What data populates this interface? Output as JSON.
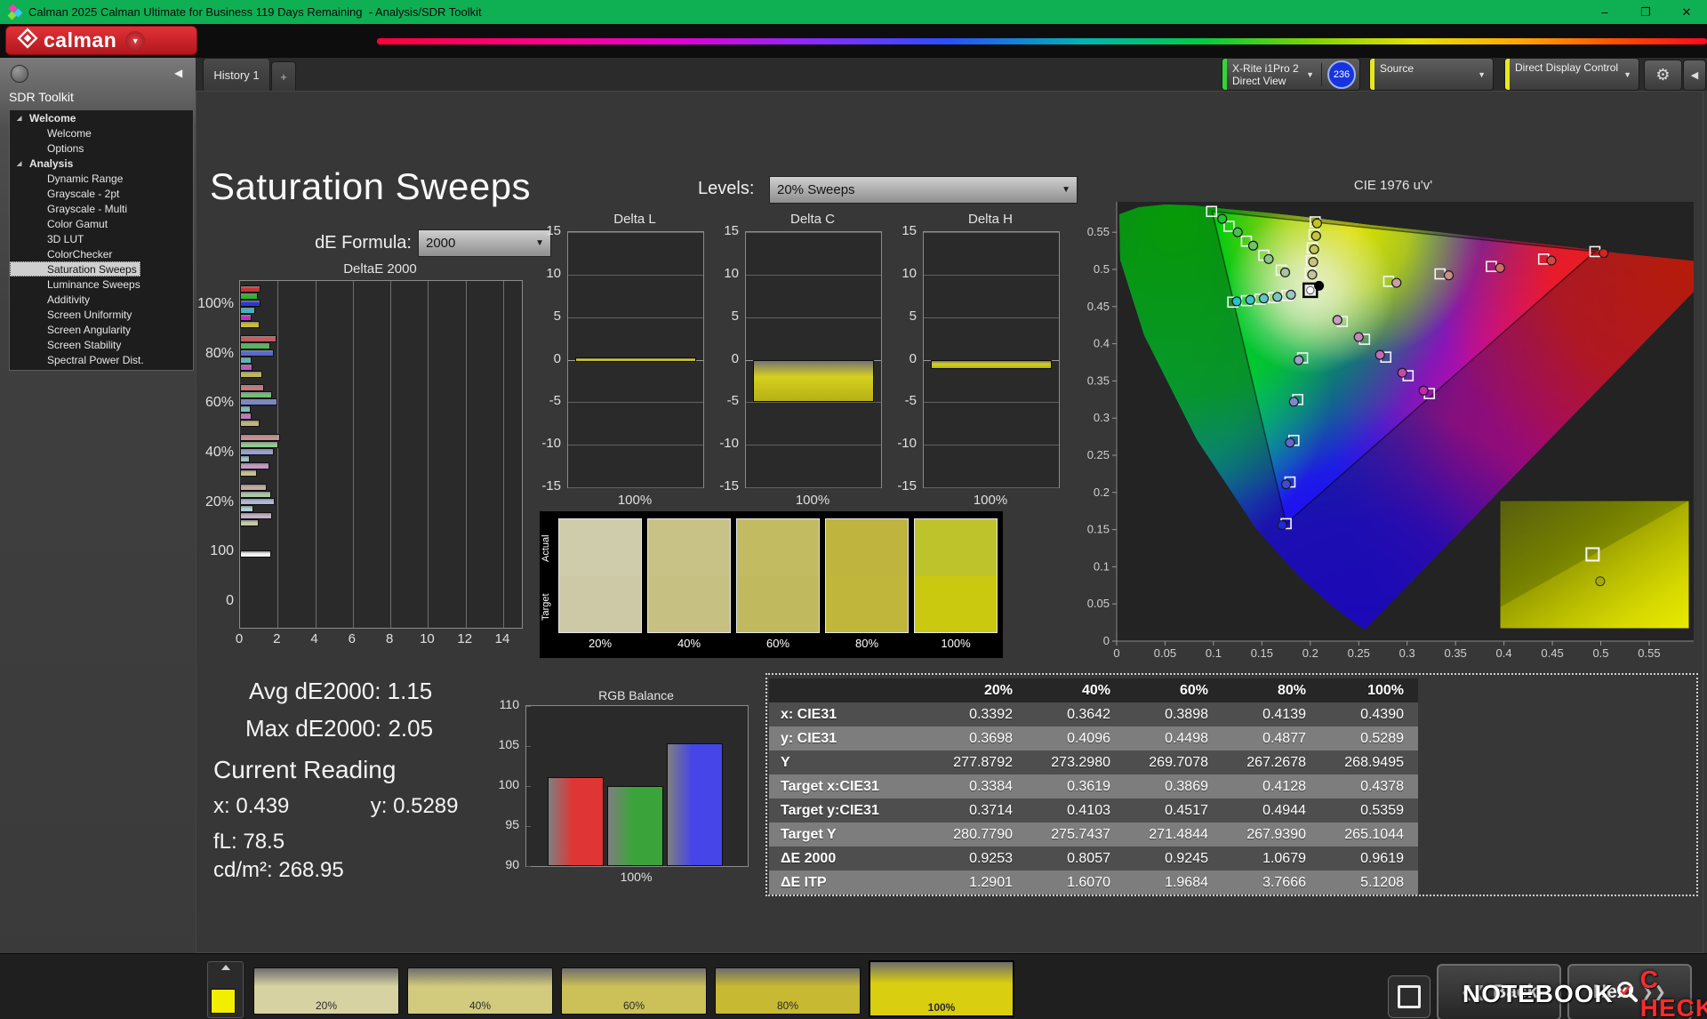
{
  "window": {
    "title": "Calman 2025 Calman Ultimate for Business 119 Days Remaining  - Analysis/SDR Toolkit",
    "controls": {
      "minimize": "–",
      "maximize": "❐",
      "close": "✕"
    }
  },
  "brand": {
    "logo_text": "calman"
  },
  "tabs": {
    "history": "History 1",
    "add": "+"
  },
  "toolbar": {
    "meter_line1": "X-Rite i1Pro 2",
    "meter_line2": "Direct View",
    "meter_badge": "236",
    "source_label": "Source",
    "display_control_label": "Direct Display Control",
    "meter_stripe_color": "#35d435",
    "source_stripe_color": "#e8e820",
    "ddc_stripe_color": "#e8e820"
  },
  "sidebar": {
    "title": "SDR Toolkit",
    "tree": [
      {
        "label": "Welcome",
        "group": true
      },
      {
        "label": "Welcome"
      },
      {
        "label": "Options"
      },
      {
        "label": "Analysis",
        "group": true
      },
      {
        "label": "Dynamic Range"
      },
      {
        "label": "Grayscale - 2pt"
      },
      {
        "label": "Grayscale - Multi"
      },
      {
        "label": "Color Gamut"
      },
      {
        "label": "3D LUT"
      },
      {
        "label": "ColorChecker"
      },
      {
        "label": "Saturation Sweeps",
        "selected": true
      },
      {
        "label": "Luminance Sweeps"
      },
      {
        "label": "Additivity"
      },
      {
        "label": "Screen Uniformity"
      },
      {
        "label": "Screen Angularity"
      },
      {
        "label": "Screen Stability"
      },
      {
        "label": "Spectral Power Dist."
      }
    ]
  },
  "page": {
    "title": "Saturation Sweeps",
    "de_formula_label": "dE Formula:",
    "de_formula_value": "2000",
    "levels_label": "Levels:",
    "levels_value": "20% Sweeps"
  },
  "readings": {
    "avg_label": "Avg dE2000:",
    "avg_value": "1.15",
    "max_label": "Max dE2000:",
    "max_value": "2.05",
    "current_title": "Current Reading",
    "x_label": "x:",
    "x_value": "0.439",
    "y_label": "y:",
    "y_value": "0.5289",
    "fl_label": "fL:",
    "fl_value": "78.5",
    "cd_label": "cd/m²:",
    "cd_value": "268.95"
  },
  "swatches": {
    "row_labels": [
      "Actual",
      "Target"
    ],
    "items": [
      {
        "label": "20%",
        "actual": "#cfccab",
        "target": "#cdc9a7"
      },
      {
        "label": "40%",
        "actual": "#c8c287",
        "target": "#c6c083"
      },
      {
        "label": "60%",
        "actual": "#c3bb62",
        "target": "#c1b95e"
      },
      {
        "label": "80%",
        "actual": "#bfb53e",
        "target": "#c0b63b"
      },
      {
        "label": "100%",
        "actual": "#bec32c",
        "target": "#cbc90f"
      }
    ]
  },
  "table": {
    "col_headers": [
      "20%",
      "40%",
      "60%",
      "80%",
      "100%"
    ],
    "rows": [
      {
        "label": "x: CIE31",
        "values": [
          "0.3392",
          "0.3642",
          "0.3898",
          "0.4139",
          "0.4390"
        ]
      },
      {
        "label": "y: CIE31",
        "values": [
          "0.3698",
          "0.4096",
          "0.4498",
          "0.4877",
          "0.5289"
        ]
      },
      {
        "label": "Y",
        "values": [
          "277.8792",
          "273.2980",
          "269.7078",
          "267.2678",
          "268.9495"
        ]
      },
      {
        "label": "Target x:CIE31",
        "values": [
          "0.3384",
          "0.3619",
          "0.3869",
          "0.4128",
          "0.4378"
        ]
      },
      {
        "label": "Target y:CIE31",
        "values": [
          "0.3714",
          "0.4103",
          "0.4517",
          "0.4944",
          "0.5359"
        ]
      },
      {
        "label": "Target Y",
        "values": [
          "280.7790",
          "275.7437",
          "271.4844",
          "267.9390",
          "265.1044"
        ]
      },
      {
        "label": "ΔE 2000",
        "values": [
          "0.9253",
          "0.8057",
          "0.9245",
          "1.0679",
          "0.9619"
        ]
      },
      {
        "label": "ΔE ITP",
        "values": [
          "1.2901",
          "1.6070",
          "1.9684",
          "3.7666",
          "5.1208"
        ]
      }
    ]
  },
  "bottom_bar": {
    "patches": [
      {
        "label": "20%",
        "color": "#d7d2a2"
      },
      {
        "label": "40%",
        "color": "#d2ca7d"
      },
      {
        "label": "60%",
        "color": "#ccc158"
      },
      {
        "label": "80%",
        "color": "#c7b932"
      },
      {
        "label": "100%",
        "color": "#d9ce10",
        "selected": true
      }
    ],
    "patch_indicator_color": "#f2ee00",
    "back_label": "Back",
    "next_label": "Next"
  },
  "watermark": {
    "part1": "NOTEBOOK",
    "part2": "C​HECK"
  },
  "chart_data": [
    {
      "id": "deltae2000",
      "type": "bar",
      "orientation": "horizontal",
      "title": "DeltaE 2000",
      "categories": [
        "100%",
        "80%",
        "60%",
        "40%",
        "20%",
        "100",
        "0"
      ],
      "series_names": [
        "Red",
        "Green",
        "Blue",
        "Cyan",
        "Magenta",
        "Yellow"
      ],
      "groups": [
        {
          "label": "100%",
          "values": [
            1.0,
            0.85,
            1.0,
            0.7,
            0.5,
            0.95
          ],
          "colors": [
            "#d03030",
            "#28b828",
            "#2838d8",
            "#38b8c0",
            "#c030c0",
            "#c8c030"
          ]
        },
        {
          "label": "80%",
          "values": [
            1.85,
            1.5,
            1.7,
            0.5,
            0.55,
            1.1
          ],
          "colors": [
            "#c85858",
            "#50b858",
            "#5868d0",
            "#58b8b8",
            "#c058c0",
            "#c0b858"
          ]
        },
        {
          "label": "60%",
          "values": [
            1.2,
            1.6,
            1.9,
            0.45,
            0.5,
            0.95
          ],
          "colors": [
            "#c87878",
            "#70c078",
            "#7888d0",
            "#78c0c0",
            "#c078c0",
            "#c0b878"
          ]
        },
        {
          "label": "40%",
          "values": [
            2.05,
            1.95,
            1.7,
            0.4,
            1.45,
            0.8
          ],
          "colors": [
            "#c89090",
            "#90c890",
            "#98a0d8",
            "#98c8c8",
            "#c898c8",
            "#c8c090"
          ]
        },
        {
          "label": "20%",
          "values": [
            1.3,
            1.55,
            1.75,
            0.6,
            1.6,
            0.9
          ],
          "colors": [
            "#c8a8a0",
            "#a8c8a8",
            "#b0b8d8",
            "#b0d0d0",
            "#c8b0c8",
            "#c8c8a8"
          ]
        },
        {
          "label": "100",
          "values": [
            1.55
          ],
          "colors": [
            "#f2f2f2"
          ]
        },
        {
          "label": "0",
          "values": [],
          "colors": []
        }
      ],
      "xlim": [
        0,
        14.9
      ],
      "xticks": [
        0,
        2,
        4,
        6,
        8,
        10,
        12,
        14
      ]
    },
    {
      "id": "delta_l",
      "type": "bar",
      "title": "Delta L",
      "value": 0.3,
      "ylim": [
        -15,
        15
      ],
      "yticks": [
        15,
        10,
        5,
        0,
        -5,
        -10,
        -15
      ],
      "xlabel": "100%",
      "bar_color": "#d6d01e"
    },
    {
      "id": "delta_c",
      "type": "bar",
      "title": "Delta C",
      "value": -4.8,
      "ylim": [
        -15,
        15
      ],
      "yticks": [
        15,
        10,
        5,
        0,
        -5,
        -10,
        -15
      ],
      "xlabel": "100%",
      "bar_color": "#d6d01e"
    },
    {
      "id": "delta_h",
      "type": "bar",
      "title": "Delta H",
      "value": -0.9,
      "ylim": [
        -15,
        15
      ],
      "yticks": [
        15,
        10,
        5,
        0,
        -5,
        -10,
        -15
      ],
      "xlabel": "100%",
      "bar_color": "#d6d01e"
    },
    {
      "id": "rgb_balance",
      "type": "bar",
      "title": "RGB Balance",
      "categories": [
        "Red",
        "Green",
        "Blue"
      ],
      "values": [
        101.1,
        100.0,
        105.3
      ],
      "colors": [
        "#e03535",
        "#3aa43a",
        "#4545e8"
      ],
      "ylim": [
        90,
        110
      ],
      "yticks": [
        110,
        105,
        100,
        95,
        90
      ],
      "xlabel": "100%"
    },
    {
      "id": "cie",
      "type": "scatter",
      "title": "CIE 1976 u'v'",
      "xlim": [
        0,
        0.596
      ],
      "ylim": [
        0,
        0.591
      ],
      "tick_values": [
        0,
        0.05,
        0.1,
        0.15,
        0.2,
        0.25,
        0.3,
        0.35,
        0.4,
        0.45,
        0.5,
        0.55
      ],
      "tick_labels": [
        "0",
        "0.05",
        "0.1",
        "0.15",
        "0.2",
        "0.25",
        "0.3",
        "0.35",
        "0.4",
        "0.45",
        "0.5",
        "0.55"
      ],
      "gamut_triangle": [
        [
          0.0986,
          0.578
        ],
        [
          0.494,
          0.524
        ],
        [
          0.175,
          0.158
        ]
      ],
      "sweeps": [
        {
          "name": "red",
          "targets": [
            [
              0.281,
              0.484
            ],
            [
              0.334,
              0.494
            ],
            [
              0.387,
              0.504
            ],
            [
              0.441,
              0.514
            ],
            [
              0.494,
              0.524
            ]
          ],
          "measured": [
            [
              0.289,
              0.482
            ],
            [
              0.343,
              0.492
            ],
            [
              0.396,
              0.502
            ],
            [
              0.449,
              0.512
            ],
            [
              0.503,
              0.522
            ]
          ],
          "colors": [
            "#c9a39b",
            "#cb8d85",
            "#cd7068",
            "#d04840",
            "#d42420"
          ]
        },
        {
          "name": "green",
          "targets": [
            [
              0.17,
              0.499
            ],
            [
              0.152,
              0.519
            ],
            [
              0.134,
              0.538
            ],
            [
              0.116,
              0.558
            ],
            [
              0.098,
              0.578
            ]
          ],
          "measured": [
            [
              0.174,
              0.496
            ],
            [
              0.157,
              0.514
            ],
            [
              0.141,
              0.532
            ],
            [
              0.125,
              0.55
            ],
            [
              0.109,
              0.568
            ]
          ],
          "colors": [
            "#a8c4a0",
            "#8cc48a",
            "#6cc46e",
            "#44c44c",
            "#20c42c"
          ]
        },
        {
          "name": "blue",
          "targets": [
            [
              0.192,
              0.381
            ],
            [
              0.187,
              0.325
            ],
            [
              0.183,
              0.27
            ],
            [
              0.179,
              0.214
            ],
            [
              0.175,
              0.158
            ]
          ],
          "measured": [
            [
              0.188,
              0.378
            ],
            [
              0.183,
              0.322
            ],
            [
              0.179,
              0.267
            ],
            [
              0.175,
              0.211
            ],
            [
              0.171,
              0.156
            ]
          ],
          "colors": [
            "#9aa0c8",
            "#8088cc",
            "#6068d0",
            "#4048d8",
            "#2028e0"
          ]
        },
        {
          "name": "cyan",
          "targets": [
            [
              0.176,
              0.465
            ],
            [
              0.162,
              0.462
            ],
            [
              0.148,
              0.46
            ],
            [
              0.134,
              0.458
            ],
            [
              0.12,
              0.456
            ]
          ],
          "measured": [
            [
              0.18,
              0.466
            ],
            [
              0.166,
              0.463
            ],
            [
              0.152,
              0.461
            ],
            [
              0.138,
              0.459
            ],
            [
              0.124,
              0.457
            ]
          ],
          "colors": [
            "#9cc4c4",
            "#80c4c4",
            "#60c4c4",
            "#40c4c4",
            "#20c4c4"
          ]
        },
        {
          "name": "magenta",
          "targets": [
            [
              0.233,
              0.43
            ],
            [
              0.256,
              0.406
            ],
            [
              0.278,
              0.382
            ],
            [
              0.301,
              0.357
            ],
            [
              0.323,
              0.333
            ]
          ],
          "measured": [
            [
              0.228,
              0.432
            ],
            [
              0.25,
              0.409
            ],
            [
              0.272,
              0.385
            ],
            [
              0.295,
              0.361
            ],
            [
              0.317,
              0.337
            ]
          ],
          "colors": [
            "#c4a0c0",
            "#c484bc",
            "#c468b8",
            "#c448b4",
            "#c428b0"
          ]
        },
        {
          "name": "yellow",
          "targets": [
            [
              0.2,
              0.495
            ],
            [
              0.201,
              0.512
            ],
            [
              0.202,
              0.529
            ],
            [
              0.204,
              0.547
            ],
            [
              0.205,
              0.564
            ]
          ],
          "measured": [
            [
              0.202,
              0.493
            ],
            [
              0.203,
              0.51
            ],
            [
              0.204,
              0.527
            ],
            [
              0.206,
              0.545
            ],
            [
              0.207,
              0.562
            ]
          ],
          "colors": [
            "#c4c49c",
            "#c4c480",
            "#c4c460",
            "#c4c440",
            "#c4c420"
          ]
        }
      ],
      "white_target": [
        0.2,
        0.472
      ],
      "current_dot": [
        0.209,
        0.478
      ],
      "inset": {
        "square": [
          0.49,
          0.42
        ],
        "dot": [
          0.53,
          0.63
        ]
      }
    }
  ]
}
